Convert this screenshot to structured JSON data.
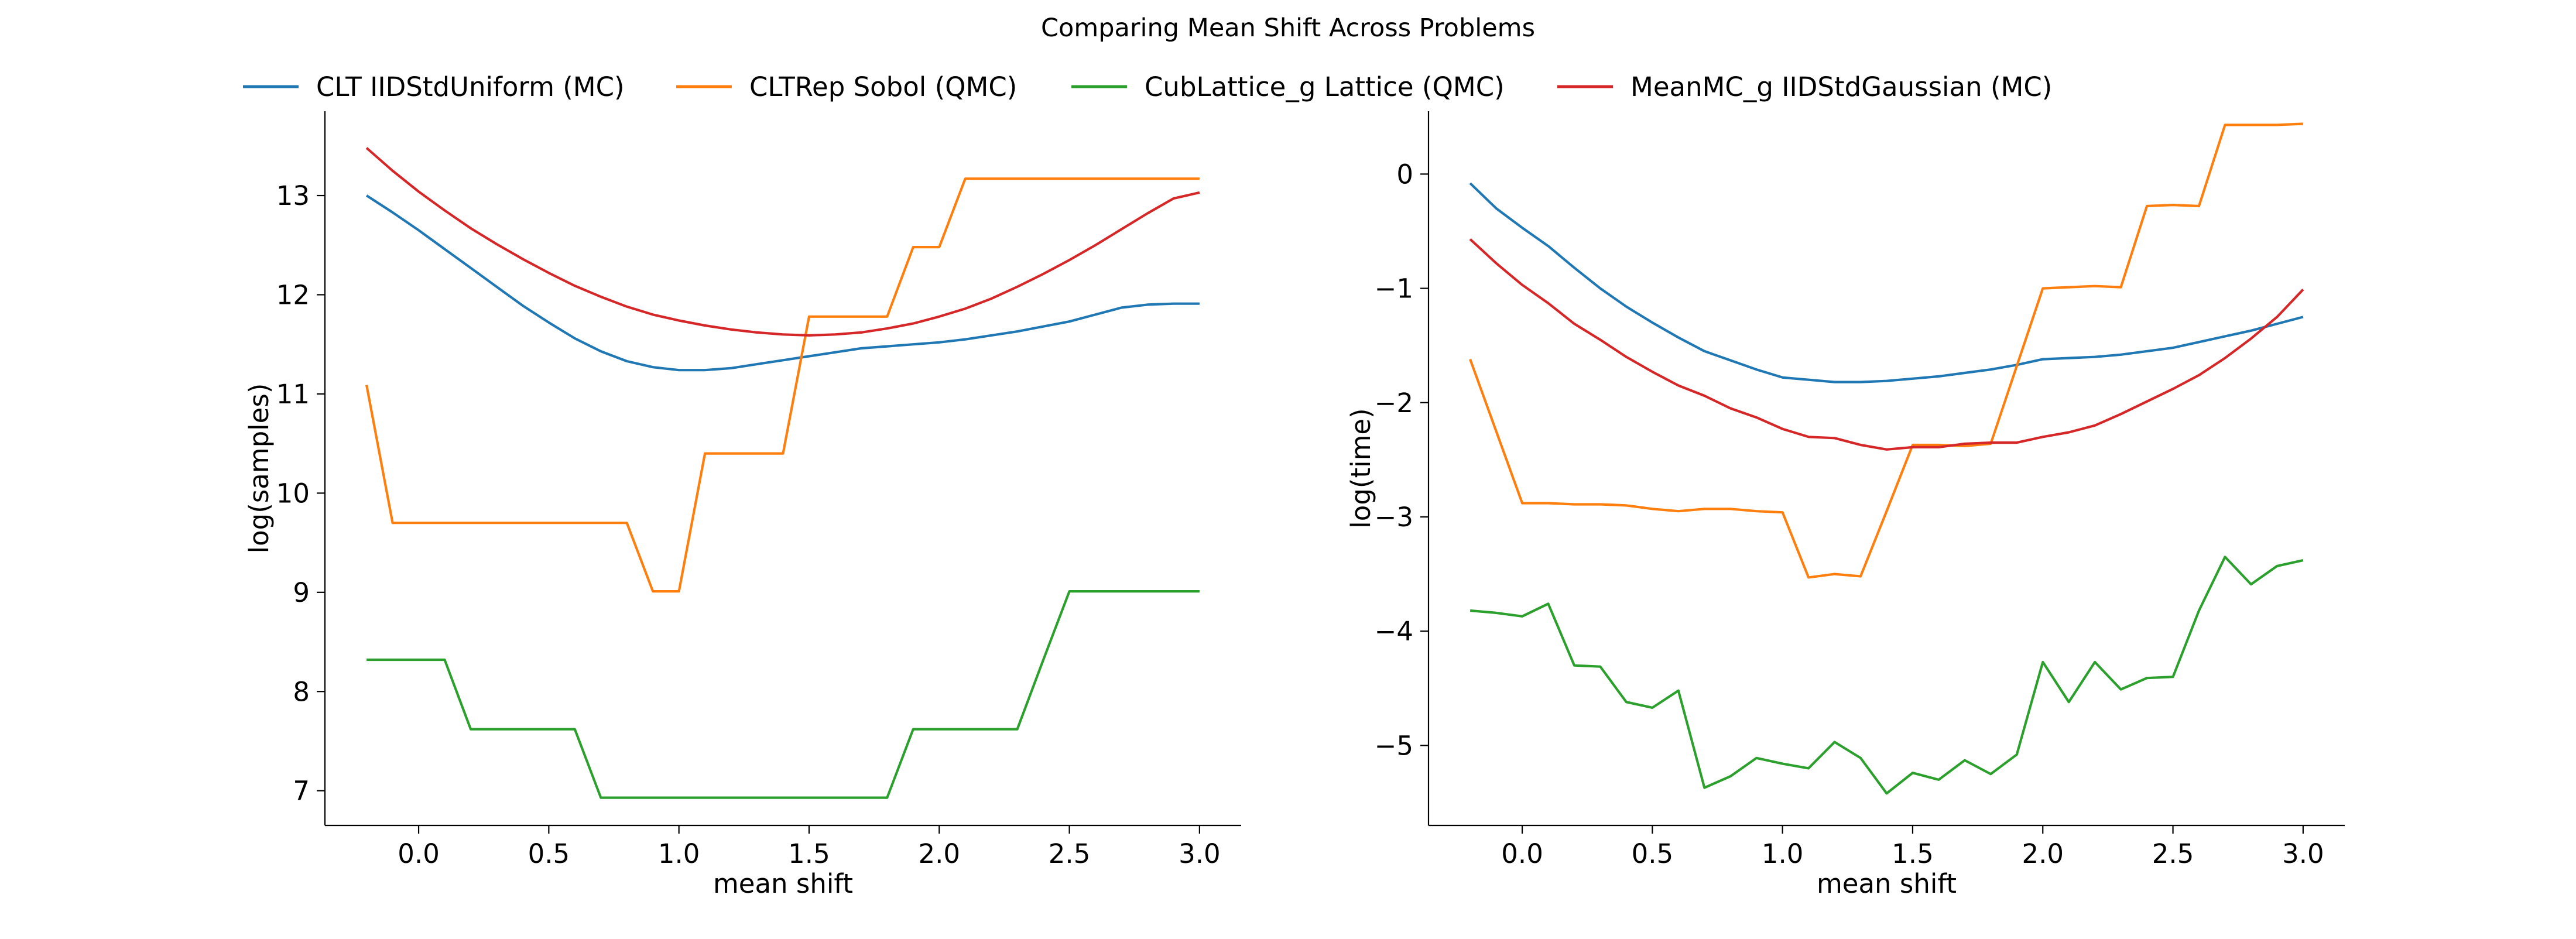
{
  "figure": {
    "title": "Comparing Mean Shift Across Problems"
  },
  "legend": {
    "placement": "top",
    "items": [
      {
        "label": "CLT IIDStdUniform (MC)",
        "color": "#1f77b4"
      },
      {
        "label": "CLTRep Sobol (QMC)",
        "color": "#ff7f0e"
      },
      {
        "label": "CubLattice_g Lattice (QMC)",
        "color": "#2ca02c"
      },
      {
        "label": "MeanMC_g IIDStdGaussian (MC)",
        "color": "#d62728"
      }
    ]
  },
  "chart_data": [
    {
      "type": "line",
      "xlabel": "mean shift",
      "ylabel": "log(samples)",
      "xlim": [
        -0.36,
        3.16
      ],
      "ylim": [
        6.65,
        13.85
      ],
      "xticks": [
        "0.0",
        "0.5",
        "1.0",
        "1.5",
        "2.0",
        "2.5",
        "3.0"
      ],
      "yticks": [
        "7",
        "8",
        "9",
        "10",
        "11",
        "12",
        "13"
      ],
      "grid": false,
      "x": [
        -0.2,
        -0.1,
        0.0,
        0.1,
        0.2,
        0.3,
        0.4,
        0.5,
        0.6,
        0.7,
        0.8,
        0.9,
        1.0,
        1.1,
        1.2,
        1.3,
        1.4,
        1.5,
        1.6,
        1.7,
        1.8,
        1.9,
        2.0,
        2.1,
        2.2,
        2.3,
        2.4,
        2.5,
        2.6,
        2.7,
        2.8,
        2.9,
        3.0
      ],
      "series": [
        {
          "name": "CLT IIDStdUniform (MC)",
          "color": "#1f77b4",
          "values": [
            13.0,
            12.83,
            12.65,
            12.46,
            12.27,
            12.08,
            11.89,
            11.72,
            11.56,
            11.43,
            11.33,
            11.27,
            11.24,
            11.24,
            11.26,
            11.3,
            11.34,
            11.38,
            11.42,
            11.46,
            11.48,
            11.5,
            11.52,
            11.55,
            11.59,
            11.63,
            11.68,
            11.73,
            11.8,
            11.87,
            11.9,
            11.91,
            11.91
          ]
        },
        {
          "name": "CLTRep Sobol (QMC)",
          "color": "#ff7f0e",
          "values": [
            11.09,
            9.7,
            9.7,
            9.7,
            9.7,
            9.7,
            9.7,
            9.7,
            9.7,
            9.7,
            9.7,
            9.01,
            9.01,
            10.4,
            10.4,
            10.4,
            10.4,
            11.78,
            11.78,
            11.78,
            11.78,
            12.48,
            12.48,
            13.17,
            13.17,
            13.17,
            13.17,
            13.17,
            13.17,
            13.17,
            13.17,
            13.17,
            13.17
          ]
        },
        {
          "name": "CubLattice_g Lattice (QMC)",
          "color": "#2ca02c",
          "values": [
            8.32,
            8.32,
            8.32,
            8.32,
            7.62,
            7.62,
            7.62,
            7.62,
            7.62,
            6.93,
            6.93,
            6.93,
            6.93,
            6.93,
            6.93,
            6.93,
            6.93,
            6.93,
            6.93,
            6.93,
            6.93,
            7.62,
            7.62,
            7.62,
            7.62,
            7.62,
            8.32,
            9.01,
            9.01,
            9.01,
            9.01,
            9.01,
            9.01
          ]
        },
        {
          "name": "MeanMC_g IIDStdGaussian (MC)",
          "color": "#d62728",
          "values": [
            13.48,
            13.25,
            13.04,
            12.85,
            12.67,
            12.51,
            12.36,
            12.22,
            12.09,
            11.98,
            11.88,
            11.8,
            11.74,
            11.69,
            11.65,
            11.62,
            11.6,
            11.59,
            11.6,
            11.62,
            11.66,
            11.71,
            11.78,
            11.86,
            11.96,
            12.08,
            12.21,
            12.35,
            12.5,
            12.66,
            12.82,
            12.97,
            13.03
          ]
        }
      ]
    },
    {
      "type": "line",
      "xlabel": "mean shift",
      "ylabel": "log(time)",
      "xlim": [
        -0.36,
        3.16
      ],
      "ylim": [
        -5.7,
        0.55
      ],
      "xticks": [
        "0.0",
        "0.5",
        "1.0",
        "1.5",
        "2.0",
        "2.5",
        "3.0"
      ],
      "yticks": [
        "−5",
        "−4",
        "−3",
        "−2",
        "−1",
        "0"
      ],
      "grid": false,
      "x": [
        -0.2,
        -0.1,
        0.0,
        0.1,
        0.2,
        0.3,
        0.4,
        0.5,
        0.6,
        0.7,
        0.8,
        0.9,
        1.0,
        1.1,
        1.2,
        1.3,
        1.4,
        1.5,
        1.6,
        1.7,
        1.8,
        1.9,
        2.0,
        2.1,
        2.2,
        2.3,
        2.4,
        2.5,
        2.6,
        2.7,
        2.8,
        2.9,
        3.0
      ],
      "series": [
        {
          "name": "CLT IIDStdUniform (MC)",
          "color": "#1f77b4",
          "values": [
            -0.08,
            -0.3,
            -0.47,
            -0.63,
            -0.82,
            -1.0,
            -1.16,
            -1.3,
            -1.43,
            -1.55,
            -1.63,
            -1.71,
            -1.78,
            -1.8,
            -1.82,
            -1.82,
            -1.81,
            -1.79,
            -1.77,
            -1.74,
            -1.71,
            -1.67,
            -1.62,
            -1.61,
            -1.6,
            -1.58,
            -1.55,
            -1.52,
            -1.47,
            -1.42,
            -1.37,
            -1.31,
            -1.25
          ]
        },
        {
          "name": "CLTRep Sobol (QMC)",
          "color": "#ff7f0e",
          "values": [
            -1.62,
            -2.25,
            -2.88,
            -2.88,
            -2.89,
            -2.89,
            -2.9,
            -2.93,
            -2.95,
            -2.93,
            -2.93,
            -2.95,
            -2.96,
            -3.53,
            -3.5,
            -3.52,
            -2.95,
            -2.37,
            -2.37,
            -2.38,
            -2.36,
            -1.68,
            -1.0,
            -0.99,
            -0.98,
            -0.99,
            -0.28,
            -0.27,
            -0.28,
            0.43,
            0.43,
            0.43,
            0.44
          ]
        },
        {
          "name": "CubLattice_g Lattice (QMC)",
          "color": "#2ca02c",
          "values": [
            -3.82,
            -3.84,
            -3.87,
            -3.76,
            -4.3,
            -4.31,
            -4.62,
            -4.67,
            -4.52,
            -5.37,
            -5.27,
            -5.11,
            -5.16,
            -5.2,
            -4.97,
            -5.11,
            -5.42,
            -5.24,
            -5.3,
            -5.13,
            -5.25,
            -5.08,
            -4.27,
            -4.62,
            -4.27,
            -4.51,
            -4.41,
            -4.4,
            -3.82,
            -3.35,
            -3.59,
            -3.43,
            -3.38
          ]
        },
        {
          "name": "MeanMC_g IIDStdGaussian (MC)",
          "color": "#d62728",
          "values": [
            -0.57,
            -0.78,
            -0.97,
            -1.13,
            -1.31,
            -1.45,
            -1.6,
            -1.73,
            -1.85,
            -1.94,
            -2.05,
            -2.13,
            -2.23,
            -2.3,
            -2.31,
            -2.37,
            -2.41,
            -2.39,
            -2.39,
            -2.36,
            -2.35,
            -2.35,
            -2.3,
            -2.26,
            -2.2,
            -2.1,
            -1.99,
            -1.88,
            -1.76,
            -1.61,
            -1.44,
            -1.25,
            -1.01
          ]
        }
      ]
    }
  ]
}
